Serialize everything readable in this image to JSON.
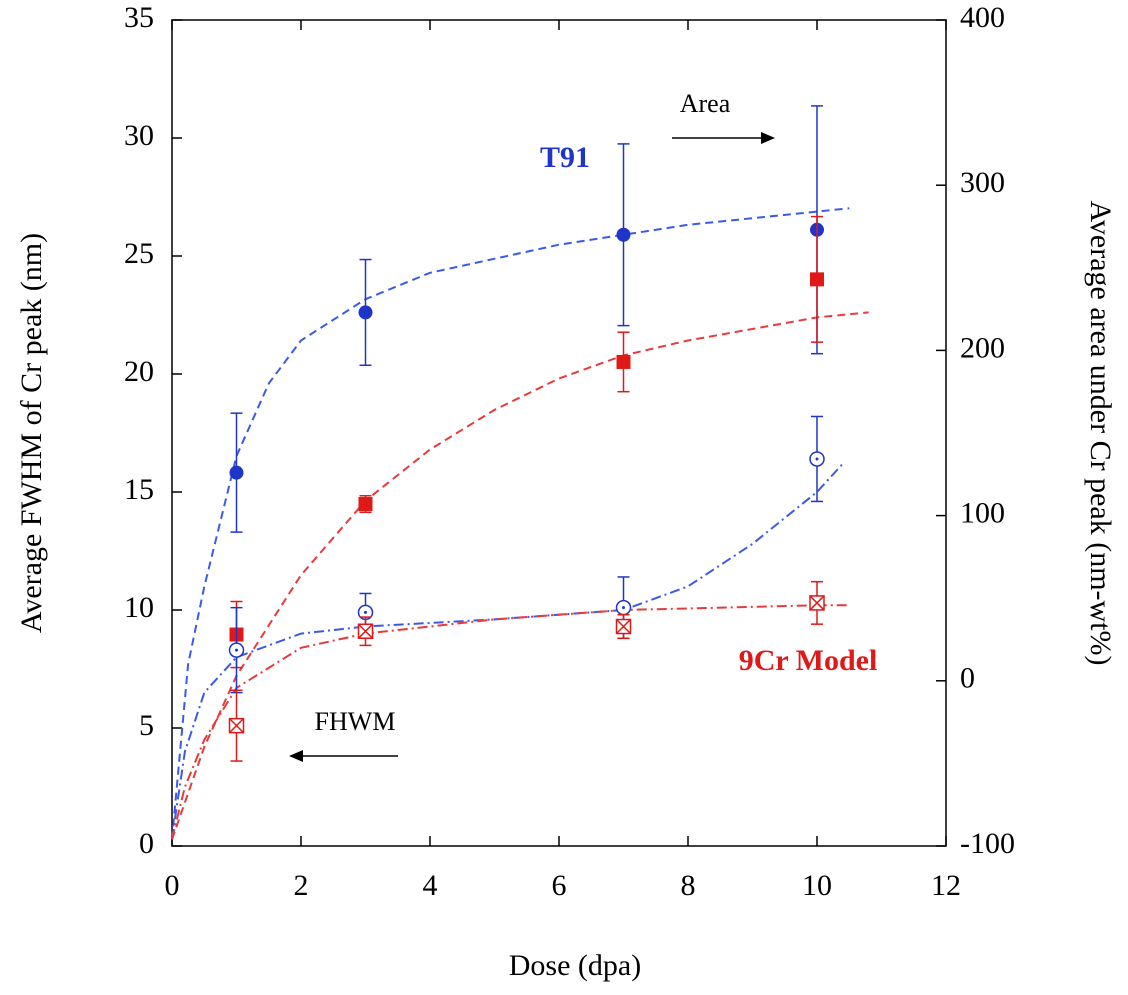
{
  "chart_data": {
    "type": "scatter",
    "xlabel": "Dose (dpa)",
    "ylabel": "Average FWHM of Cr peak (nm)",
    "y2label": "Average area under Cr peak (nm-wt%)",
    "xlim": [
      0,
      12
    ],
    "xticks": [
      0,
      2,
      4,
      6,
      8,
      10,
      12
    ],
    "ylim": [
      0,
      35
    ],
    "yticks": [
      0,
      5,
      10,
      15,
      20,
      25,
      30,
      35
    ],
    "y2lim": [
      -100,
      400
    ],
    "y2ticks": [
      -100,
      0,
      100,
      200,
      300,
      400
    ],
    "series": [
      {
        "color": "#1f35c9",
        "marker": "filled-circle",
        "axis": "y2",
        "x": [
          1,
          3,
          7,
          10
        ],
        "values": [
          126,
          223,
          270,
          273
        ],
        "errors": [
          36,
          32,
          55,
          75
        ]
      },
      {
        "color": "#e01818",
        "marker": "filled-square",
        "axis": "y2",
        "x": [
          1,
          3,
          7,
          10
        ],
        "values": [
          28,
          107,
          193,
          243
        ],
        "errors": [
          20,
          5,
          18,
          38
        ]
      },
      {
        "color": "#1f35c9",
        "marker": "open-circle",
        "axis": "y",
        "x": [
          1,
          3,
          7,
          10
        ],
        "values": [
          8.3,
          9.9,
          10.1,
          16.4
        ],
        "errors": [
          1.8,
          0.8,
          1.3,
          1.8
        ]
      },
      {
        "color": "#e01818",
        "marker": "crossed-square",
        "axis": "y",
        "x": [
          1,
          3,
          7,
          10
        ],
        "values": [
          5.1,
          9.1,
          9.3,
          10.3
        ],
        "errors": [
          1.5,
          0.6,
          0.5,
          0.9
        ]
      }
    ],
    "fits": [
      {
        "color": "#3a5ae8",
        "dash": "dashed",
        "axis": "y2",
        "x": [
          0,
          0.25,
          0.5,
          1,
          1.5,
          2,
          3,
          4,
          6,
          8,
          10.5
        ],
        "values": [
          -96,
          10,
          57,
          136,
          180,
          206,
          231,
          247,
          264,
          276,
          286
        ]
      },
      {
        "color": "#e83a3a",
        "dash": "dashed",
        "axis": "y2",
        "x": [
          0,
          0.5,
          1,
          2,
          3,
          4,
          5,
          6,
          7,
          8,
          10,
          10.8
        ],
        "values": [
          -96,
          -40,
          3,
          64,
          109,
          140,
          164,
          183,
          197,
          206,
          220,
          223
        ]
      },
      {
        "color": "#3a5ae8",
        "dash": "dash-dot",
        "axis": "y",
        "x": [
          0,
          0.2,
          0.5,
          1,
          2,
          3,
          5,
          7,
          8,
          9,
          10,
          10.4
        ],
        "values": [
          0.3,
          4.0,
          6.5,
          8.0,
          9.0,
          9.3,
          9.6,
          10.0,
          11.0,
          12.8,
          15.0,
          16.2
        ]
      },
      {
        "color": "#e83a3a",
        "dash": "dash-dot",
        "axis": "y",
        "x": [
          0,
          0.2,
          0.5,
          1,
          2,
          3,
          5,
          7,
          10,
          10.5
        ],
        "values": [
          0.3,
          2.5,
          4.5,
          6.7,
          8.4,
          9.0,
          9.6,
          10.0,
          10.2,
          10.2
        ]
      }
    ],
    "annotations": [
      {
        "text": "Area",
        "color": "#000000",
        "bold": false
      },
      {
        "text": "T91",
        "color": "#1f35c9",
        "bold": true
      },
      {
        "text": "FHWM",
        "color": "#000000",
        "bold": false
      },
      {
        "text": "9Cr Model",
        "color": "#e01818",
        "bold": true
      }
    ]
  }
}
